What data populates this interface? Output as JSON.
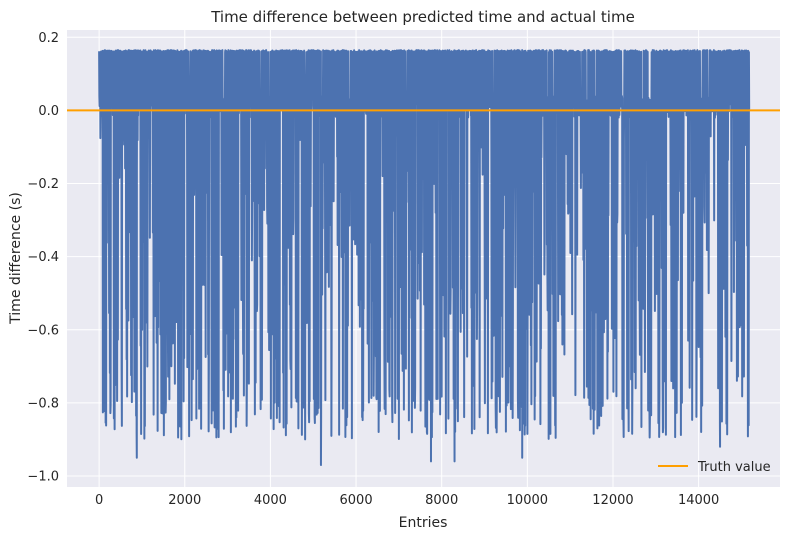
{
  "chart_data": {
    "type": "line",
    "title": "Time difference between predicted time and actual time",
    "xlabel": "Entries",
    "ylabel": "Time difference (s)",
    "xlim": [
      -750,
      15900
    ],
    "ylim": [
      -1.03,
      0.22
    ],
    "x_ticks": [
      0,
      2000,
      4000,
      6000,
      8000,
      10000,
      12000,
      14000
    ],
    "x_tick_labels": [
      "0",
      "2000",
      "4000",
      "6000",
      "8000",
      "10000",
      "12000",
      "14000"
    ],
    "y_ticks": [
      0.2,
      0.0,
      -0.2,
      -0.4,
      -0.6,
      -0.8,
      -1.0
    ],
    "y_tick_labels": [
      "0.2",
      "0.0",
      "−0.2",
      "−0.4",
      "−0.6",
      "−0.8",
      "−1.0"
    ],
    "grid": true,
    "legend_position": "lower-right",
    "series": [
      {
        "name": "",
        "color": "#4c72b0",
        "x_range": [
          0,
          15180
        ],
        "y_min_approx": -0.97,
        "y_max_approx": 0.17,
        "dense_band": [
          -0.02,
          0.04
        ],
        "note_values": {
          "upper_spikes": 0.165,
          "typical_negative_spikes": [
            -0.1,
            -0.9
          ],
          "extreme_negative_spikes": [
            {
              "x": 880,
              "y": -0.95
            },
            {
              "x": 5180,
              "y": -0.97
            },
            {
              "x": 7750,
              "y": -0.96
            },
            {
              "x": 8300,
              "y": -0.96
            },
            {
              "x": 9880,
              "y": -0.95
            },
            {
              "x": 14500,
              "y": -0.92
            }
          ]
        }
      },
      {
        "name": "Truth value",
        "color": "#ff9f00",
        "y": 0.0
      }
    ]
  }
}
